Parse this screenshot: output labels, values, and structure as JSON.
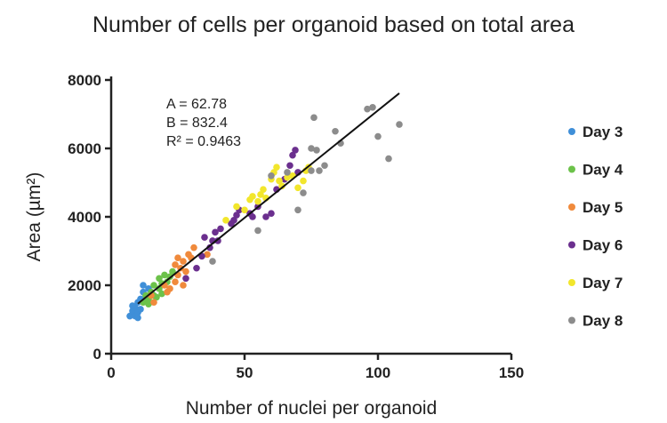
{
  "chart_data": {
    "type": "scatter",
    "title": "Number of cells per organoid based on total area",
    "xlabel": "Number of nuclei per organoid",
    "ylabel": "Area (µm²)",
    "xlim": [
      0,
      150
    ],
    "ylim": [
      0,
      8000
    ],
    "xticks": [
      0,
      50,
      100,
      150
    ],
    "yticks": [
      0,
      2000,
      4000,
      6000,
      8000
    ],
    "grid": false,
    "legend_position": "right",
    "annotations": [
      "A = 62.78",
      "B = 832.4",
      "R² = 0.9463"
    ],
    "fit_line": {
      "slope": 62.78,
      "intercept": 832.4,
      "x_range": [
        10,
        108
      ]
    },
    "series": [
      {
        "name": "Day 3",
        "color": "#3f8fd8",
        "points": [
          [
            7,
            1100
          ],
          [
            8,
            1150
          ],
          [
            8,
            1250
          ],
          [
            9,
            1100
          ],
          [
            9,
            1350
          ],
          [
            10,
            1200
          ],
          [
            10,
            1500
          ],
          [
            11,
            1600
          ],
          [
            11,
            1300
          ],
          [
            12,
            1800
          ],
          [
            12,
            2000
          ],
          [
            13,
            1700
          ],
          [
            14,
            1900
          ],
          [
            8,
            1400
          ],
          [
            10,
            1050
          ],
          [
            13,
            1550
          ]
        ]
      },
      {
        "name": "Day 4",
        "color": "#6cc24a",
        "points": [
          [
            12,
            1500
          ],
          [
            13,
            1700
          ],
          [
            14,
            1600
          ],
          [
            15,
            1800
          ],
          [
            16,
            2000
          ],
          [
            17,
            1650
          ],
          [
            18,
            1900
          ],
          [
            18,
            2200
          ],
          [
            19,
            2050
          ],
          [
            20,
            2300
          ],
          [
            21,
            2100
          ],
          [
            22,
            2250
          ],
          [
            16,
            1700
          ],
          [
            14,
            1450
          ],
          [
            23,
            2400
          ],
          [
            19,
            1750
          ]
        ]
      },
      {
        "name": "Day 5",
        "color": "#f08a3c",
        "points": [
          [
            15,
            1700
          ],
          [
            16,
            1500
          ],
          [
            20,
            2000
          ],
          [
            21,
            1800
          ],
          [
            22,
            1900
          ],
          [
            24,
            2100
          ],
          [
            25,
            2300
          ],
          [
            26,
            2500
          ],
          [
            27,
            2700
          ],
          [
            28,
            2400
          ],
          [
            29,
            2900
          ],
          [
            30,
            2800
          ],
          [
            31,
            3100
          ],
          [
            27,
            2000
          ],
          [
            24,
            2600
          ],
          [
            36,
            2900
          ],
          [
            25,
            2800
          ]
        ]
      },
      {
        "name": "Day 6",
        "color": "#6b2f8e",
        "points": [
          [
            28,
            2200
          ],
          [
            32,
            2500
          ],
          [
            34,
            2850
          ],
          [
            35,
            3400
          ],
          [
            37,
            3100
          ],
          [
            38,
            3300
          ],
          [
            39,
            3550
          ],
          [
            40,
            3300
          ],
          [
            41,
            3650
          ],
          [
            45,
            3800
          ],
          [
            46,
            3900
          ],
          [
            47,
            4050
          ],
          [
            48,
            4200
          ],
          [
            52,
            4100
          ],
          [
            53,
            4000
          ],
          [
            55,
            4300
          ],
          [
            58,
            4000
          ],
          [
            60,
            4100
          ],
          [
            62,
            4800
          ],
          [
            65,
            5100
          ],
          [
            67,
            5500
          ],
          [
            68,
            5800
          ],
          [
            69,
            5950
          ],
          [
            70,
            5300
          ]
        ]
      },
      {
        "name": "Day 7",
        "color": "#f2e62c",
        "points": [
          [
            43,
            3900
          ],
          [
            47,
            4300
          ],
          [
            50,
            4200
          ],
          [
            52,
            4500
          ],
          [
            53,
            4600
          ],
          [
            55,
            4450
          ],
          [
            56,
            4650
          ],
          [
            57,
            4800
          ],
          [
            58,
            4550
          ],
          [
            60,
            5100
          ],
          [
            61,
            5300
          ],
          [
            62,
            5450
          ],
          [
            63,
            5050
          ],
          [
            64,
            4900
          ],
          [
            66,
            5150
          ],
          [
            68,
            5200
          ],
          [
            70,
            4850
          ],
          [
            72,
            5050
          ],
          [
            73,
            5350
          ],
          [
            74,
            5450
          ]
        ]
      },
      {
        "name": "Day 8",
        "color": "#8c8c8c",
        "points": [
          [
            38,
            2700
          ],
          [
            55,
            3600
          ],
          [
            60,
            5200
          ],
          [
            66,
            5300
          ],
          [
            70,
            4200
          ],
          [
            72,
            4700
          ],
          [
            75,
            5350
          ],
          [
            75,
            6000
          ],
          [
            76,
            6900
          ],
          [
            77,
            5950
          ],
          [
            78,
            5350
          ],
          [
            80,
            5500
          ],
          [
            84,
            6500
          ],
          [
            86,
            6150
          ],
          [
            96,
            7150
          ],
          [
            98,
            7200
          ],
          [
            100,
            6350
          ],
          [
            104,
            5700
          ],
          [
            108,
            6700
          ]
        ]
      }
    ]
  }
}
